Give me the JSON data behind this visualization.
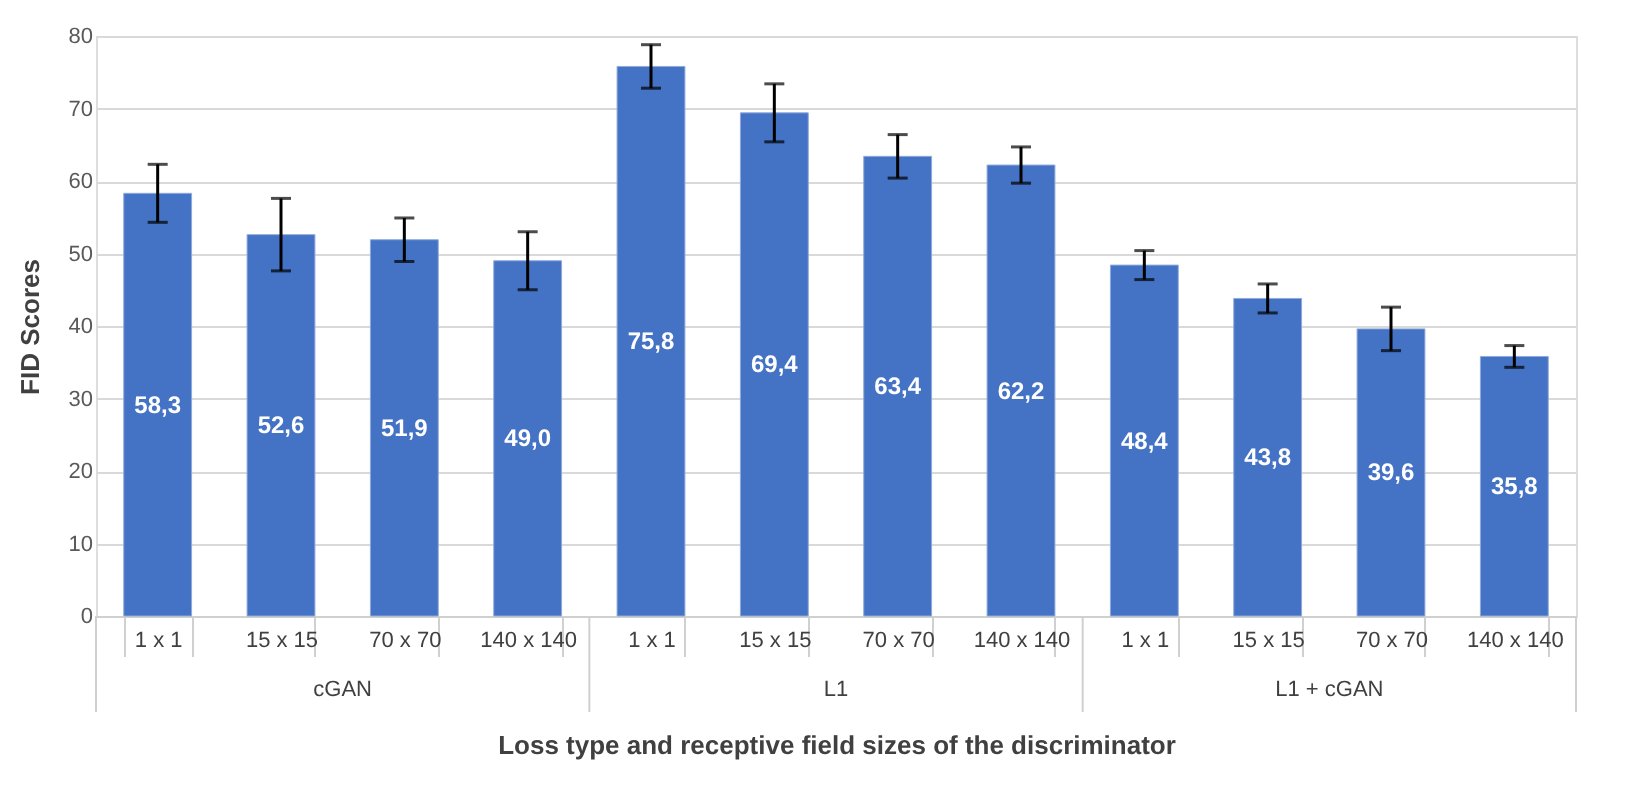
{
  "chart_data": {
    "type": "bar",
    "xlabel": "Loss type and receptive field sizes of the discriminator",
    "ylabel": "FID Scores",
    "categories": [
      "1 x 1",
      "15 x 15",
      "70 x 70",
      "140 x 140",
      "1 x 1",
      "15 x 15",
      "70 x 70",
      "140 x 140",
      "1 x 1",
      "15 x 15",
      "70 x 70",
      "140 x 140"
    ],
    "values": [
      58.3,
      52.6,
      51.9,
      49.0,
      75.8,
      69.4,
      63.4,
      62.2,
      48.4,
      43.8,
      39.6,
      35.8
    ],
    "value_labels": [
      "58,3",
      "52,6",
      "51,9",
      "49,0",
      "75,8",
      "69,4",
      "63,4",
      "62,2",
      "48,4",
      "43,8",
      "39,6",
      "35,8"
    ],
    "errors": [
      4,
      5,
      3,
      4,
      3,
      4,
      3,
      2.5,
      2,
      2,
      3,
      1.5
    ],
    "color": "#4472c4",
    "ylim": [
      0,
      80
    ],
    "yticks": [
      0,
      10,
      20,
      30,
      40,
      50,
      60,
      70,
      80
    ],
    "grid": "y",
    "annotations": [
      "cGAN",
      "L1",
      "L1 + cGAN"
    ]
  }
}
